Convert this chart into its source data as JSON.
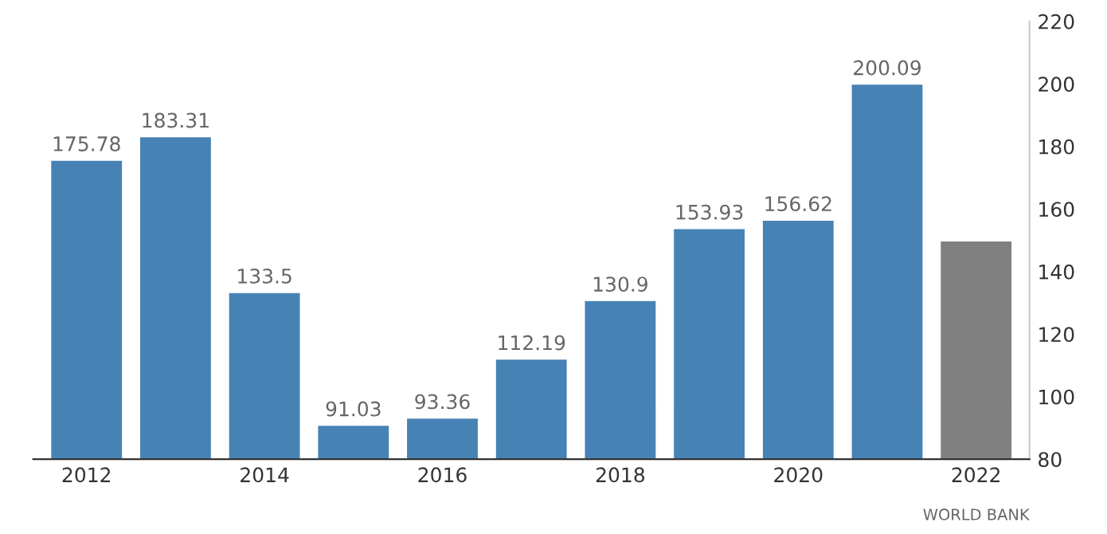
{
  "chart_data": {
    "type": "bar",
    "categories": [
      "2012",
      null,
      "2014",
      null,
      "2016",
      null,
      "2018",
      null,
      "2020",
      null,
      "2022"
    ],
    "values": [
      175.78,
      183.31,
      133.5,
      91.03,
      93.36,
      112.19,
      130.9,
      153.93,
      156.62,
      200.09,
      150
    ],
    "value_labels": [
      "175.78",
      "183.31",
      "133.5",
      "91.03",
      "93.36",
      "112.19",
      "130.9",
      "153.93",
      "156.62",
      "200.09",
      null
    ],
    "colors": [
      "#4682b4",
      "#4682b4",
      "#4682b4",
      "#4682b4",
      "#4682b4",
      "#4682b4",
      "#4682b4",
      "#4682b4",
      "#4682b4",
      "#4682b4",
      "#808080"
    ],
    "ylim": [
      80,
      220
    ],
    "yticks": [
      80,
      100,
      120,
      140,
      160,
      180,
      200,
      220
    ],
    "grid": false,
    "annotations": [
      "WORLD BANK"
    ]
  }
}
